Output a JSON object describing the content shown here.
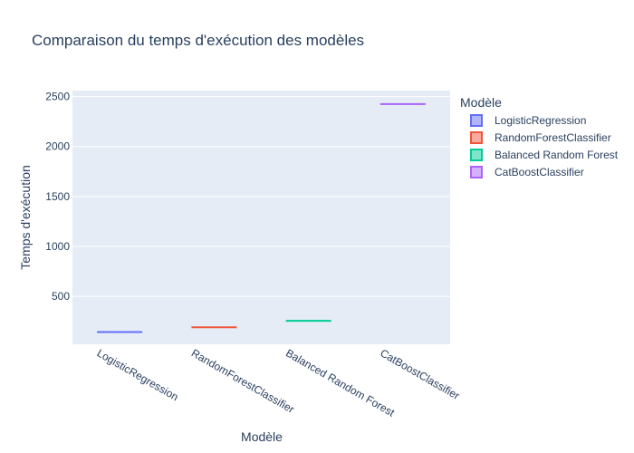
{
  "chart_data": {
    "type": "box",
    "title": "Comparaison du temps d'exécution des modèles",
    "xlabel": "Modèle",
    "ylabel": "Temps d'exécution",
    "ylim": [
      20,
      2560
    ],
    "yticks": [
      500,
      1000,
      1500,
      2000,
      2500
    ],
    "grid": true,
    "legend_title": "Modèle",
    "legend_position": "right",
    "categories": [
      "LogisticRegression",
      "RandomForestClassifier",
      "Balanced Random Forest",
      "CatBoostClassifier"
    ],
    "series": [
      {
        "name": "LogisticRegression",
        "color": "#636efa",
        "values": [
          142
        ]
      },
      {
        "name": "RandomForestClassifier",
        "color": "#ef553b",
        "values": [
          190
        ]
      },
      {
        "name": "Balanced Random Forest",
        "color": "#00cc96",
        "values": [
          255
        ]
      },
      {
        "name": "CatBoostClassifier",
        "color": "#ab63fa",
        "values": [
          2425
        ]
      }
    ]
  }
}
